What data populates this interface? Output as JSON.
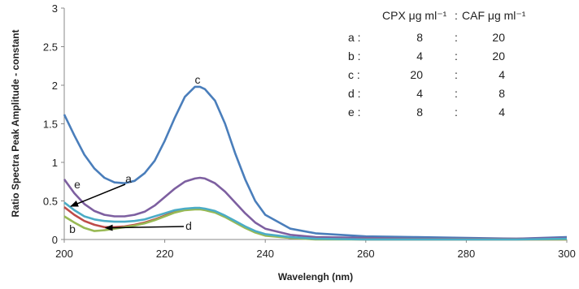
{
  "chart_data": {
    "type": "line",
    "title": "",
    "xlabel": "Wavelengh (nm)",
    "ylabel": "Ratio Spectra Peak Amplitude - constant",
    "xlim": [
      200,
      300
    ],
    "ylim": [
      0,
      3
    ],
    "xticks": [
      200,
      220,
      240,
      260,
      280,
      300
    ],
    "yticks": [
      0,
      0.5,
      1,
      1.5,
      2,
      2.5,
      3
    ],
    "grid": false,
    "legend_table": {
      "header": [
        "CPX μg ml⁻¹",
        ":",
        "CAF μg ml⁻¹"
      ],
      "rows": [
        {
          "label": "a :",
          "cpx": "8",
          "sep": ":",
          "caf": "20"
        },
        {
          "label": "b :",
          "cpx": "4",
          "sep": ":",
          "caf": "20"
        },
        {
          "label": "c :",
          "cpx": "20",
          "sep": ":",
          "caf": "4"
        },
        {
          "label": "d :",
          "cpx": "4",
          "sep": ":",
          "caf": "8"
        },
        {
          "label": "e :",
          "cpx": "8",
          "sep": ":",
          "caf": "4"
        }
      ]
    },
    "annotations": [
      "a",
      "b",
      "c",
      "d",
      "e"
    ],
    "series": [
      {
        "color": "#4a7ebb",
        "x": [
          200,
          202,
          204,
          206,
          208,
          210,
          212,
          214,
          216,
          218,
          220,
          222,
          224,
          226,
          227,
          228,
          230,
          232,
          234,
          236,
          238,
          240,
          245,
          250,
          260,
          270,
          280,
          290,
          300
        ],
        "y": [
          1.62,
          1.35,
          1.1,
          0.92,
          0.8,
          0.74,
          0.73,
          0.76,
          0.86,
          1.02,
          1.28,
          1.58,
          1.85,
          1.98,
          1.98,
          1.95,
          1.8,
          1.5,
          1.12,
          0.78,
          0.5,
          0.32,
          0.14,
          0.08,
          0.04,
          0.03,
          0.02,
          0.01,
          0.03
        ]
      },
      {
        "color": "#7d5fa0",
        "x": [
          200,
          202,
          204,
          206,
          208,
          210,
          212,
          214,
          216,
          218,
          220,
          222,
          224,
          226,
          227,
          228,
          230,
          232,
          234,
          236,
          238,
          240,
          245,
          250,
          260,
          270,
          280,
          290,
          300
        ],
        "y": [
          0.78,
          0.6,
          0.46,
          0.37,
          0.32,
          0.3,
          0.3,
          0.32,
          0.36,
          0.44,
          0.55,
          0.66,
          0.75,
          0.79,
          0.8,
          0.79,
          0.73,
          0.62,
          0.48,
          0.34,
          0.22,
          0.14,
          0.06,
          0.03,
          0.02,
          0.01,
          0.01,
          0.01,
          0.02
        ]
      },
      {
        "color": "#be4b48",
        "x": [
          200,
          202,
          204,
          206,
          208,
          210,
          212,
          214,
          216,
          218,
          220,
          222,
          224,
          226,
          227,
          228,
          230,
          232,
          234,
          236,
          238,
          240,
          245,
          250,
          260,
          270,
          280,
          290,
          300
        ],
        "y": [
          0.42,
          0.32,
          0.24,
          0.19,
          0.16,
          0.16,
          0.17,
          0.19,
          0.22,
          0.26,
          0.31,
          0.36,
          0.39,
          0.4,
          0.4,
          0.39,
          0.36,
          0.3,
          0.23,
          0.16,
          0.1,
          0.06,
          0.02,
          0.01,
          0.0,
          0.0,
          0.0,
          0.0,
          0.0
        ]
      },
      {
        "color": "#98b954",
        "x": [
          200,
          202,
          204,
          206,
          208,
          210,
          212,
          214,
          216,
          218,
          220,
          222,
          224,
          226,
          227,
          228,
          230,
          232,
          234,
          236,
          238,
          240,
          245,
          250,
          260,
          270,
          280,
          290,
          300
        ],
        "y": [
          0.3,
          0.22,
          0.15,
          0.11,
          0.12,
          0.14,
          0.16,
          0.18,
          0.21,
          0.25,
          0.3,
          0.35,
          0.38,
          0.39,
          0.39,
          0.38,
          0.35,
          0.29,
          0.22,
          0.15,
          0.09,
          0.05,
          0.02,
          0.0,
          0.0,
          0.0,
          0.0,
          0.0,
          0.0
        ]
      },
      {
        "color": "#4bacc6",
        "x": [
          200,
          202,
          204,
          206,
          208,
          210,
          212,
          214,
          216,
          218,
          220,
          222,
          224,
          226,
          227,
          228,
          230,
          232,
          234,
          236,
          238,
          240,
          245,
          250,
          260,
          270,
          280,
          290,
          300
        ],
        "y": [
          0.48,
          0.38,
          0.3,
          0.26,
          0.24,
          0.23,
          0.23,
          0.24,
          0.26,
          0.3,
          0.34,
          0.38,
          0.4,
          0.41,
          0.41,
          0.4,
          0.37,
          0.31,
          0.24,
          0.17,
          0.11,
          0.07,
          0.03,
          0.01,
          0.0,
          0.0,
          0.0,
          0.0,
          0.01
        ]
      }
    ]
  }
}
